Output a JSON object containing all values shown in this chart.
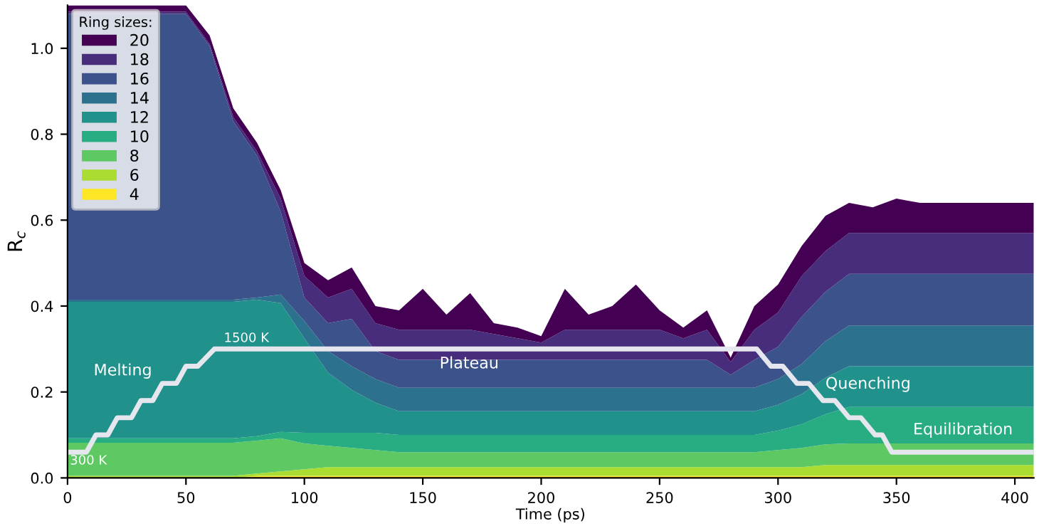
{
  "chart_data": {
    "type": "area",
    "stacked": true,
    "xlabel": "Time (ps)",
    "ylabel": "R$_{c}$",
    "legend_title": "Ring sizes:",
    "legend": "top left",
    "grid": false,
    "x": [
      0,
      10,
      20,
      30,
      40,
      50,
      60,
      70,
      80,
      90,
      100,
      110,
      120,
      130,
      140,
      150,
      160,
      170,
      180,
      190,
      200,
      210,
      220,
      230,
      240,
      250,
      260,
      270,
      280,
      290,
      300,
      310,
      320,
      330,
      340,
      350,
      360,
      370,
      380,
      390,
      400,
      408
    ],
    "xlim": [
      0,
      408
    ],
    "xticks": [
      0,
      50,
      100,
      150,
      200,
      250,
      300,
      350,
      400
    ],
    "ylim": [
      0,
      1.1
    ],
    "yticks": [
      {
        "value": 0.0,
        "label": "0.0"
      },
      0.2,
      0.4,
      0.6,
      0.8,
      {
        "value": 1.0,
        "label": "1.0"
      }
    ],
    "series": [
      {
        "name": "4",
        "color": "#fde725",
        "values": [
          0,
          0,
          0,
          0,
          0,
          0,
          0,
          0,
          0.005,
          0.005,
          0.005,
          0.005,
          0.005,
          0.005,
          0.005,
          0.005,
          0.005,
          0.005,
          0.005,
          0.005,
          0.005,
          0.005,
          0.005,
          0.005,
          0.005,
          0.005,
          0.005,
          0.005,
          0.005,
          0.005,
          0.005,
          0.005,
          0.005,
          0.005,
          0.005,
          0.005,
          0.005,
          0.005,
          0.005,
          0.005,
          0.005,
          0.005
        ]
      },
      {
        "name": "6",
        "color": "#aadc32",
        "values": [
          0.005,
          0.005,
          0.005,
          0.005,
          0.005,
          0.005,
          0.005,
          0.005,
          0.005,
          0.01,
          0.015,
          0.02,
          0.02,
          0.02,
          0.02,
          0.02,
          0.02,
          0.02,
          0.02,
          0.02,
          0.02,
          0.02,
          0.02,
          0.02,
          0.02,
          0.02,
          0.02,
          0.02,
          0.02,
          0.02,
          0.02,
          0.02,
          0.025,
          0.025,
          0.025,
          0.025,
          0.025,
          0.025,
          0.025,
          0.025,
          0.025,
          0.025
        ]
      },
      {
        "name": "8",
        "color": "#5ec962",
        "values": [
          0.077,
          0.077,
          0.077,
          0.077,
          0.077,
          0.077,
          0.077,
          0.077,
          0.077,
          0.077,
          0.06,
          0.05,
          0.045,
          0.04,
          0.035,
          0.035,
          0.035,
          0.035,
          0.035,
          0.035,
          0.035,
          0.035,
          0.035,
          0.035,
          0.035,
          0.035,
          0.035,
          0.035,
          0.035,
          0.035,
          0.04,
          0.045,
          0.048,
          0.05,
          0.05,
          0.05,
          0.05,
          0.05,
          0.05,
          0.05,
          0.05,
          0.05
        ]
      },
      {
        "name": "10",
        "color": "#27ad81",
        "values": [
          0.01,
          0.01,
          0.01,
          0.01,
          0.01,
          0.01,
          0.01,
          0.01,
          0.01,
          0.015,
          0.025,
          0.03,
          0.035,
          0.04,
          0.04,
          0.04,
          0.04,
          0.04,
          0.04,
          0.04,
          0.04,
          0.04,
          0.04,
          0.04,
          0.04,
          0.04,
          0.04,
          0.04,
          0.04,
          0.04,
          0.045,
          0.055,
          0.07,
          0.085,
          0.085,
          0.085,
          0.085,
          0.085,
          0.085,
          0.085,
          0.085,
          0.085
        ]
      },
      {
        "name": "12",
        "color": "#21918c",
        "values": [
          0.318,
          0.318,
          0.318,
          0.318,
          0.318,
          0.318,
          0.318,
          0.318,
          0.318,
          0.3,
          0.22,
          0.14,
          0.1,
          0.07,
          0.055,
          0.055,
          0.055,
          0.055,
          0.055,
          0.055,
          0.055,
          0.055,
          0.055,
          0.055,
          0.055,
          0.055,
          0.055,
          0.055,
          0.055,
          0.055,
          0.06,
          0.07,
          0.085,
          0.095,
          0.095,
          0.095,
          0.095,
          0.095,
          0.095,
          0.095,
          0.095,
          0.095
        ]
      },
      {
        "name": "14",
        "color": "#2c728e",
        "values": [
          0.005,
          0.005,
          0.005,
          0.005,
          0.005,
          0.005,
          0.005,
          0.005,
          0.005,
          0.02,
          0.04,
          0.05,
          0.055,
          0.055,
          0.055,
          0.055,
          0.055,
          0.055,
          0.055,
          0.055,
          0.055,
          0.055,
          0.055,
          0.055,
          0.055,
          0.055,
          0.055,
          0.055,
          0.055,
          0.055,
          0.06,
          0.07,
          0.085,
          0.095,
          0.095,
          0.095,
          0.095,
          0.095,
          0.095,
          0.095,
          0.095,
          0.095
        ]
      },
      {
        "name": "16",
        "color": "#3b528b",
        "values": [
          0.665,
          0.665,
          0.665,
          0.665,
          0.665,
          0.665,
          0.59,
          0.415,
          0.33,
          0.193,
          0.055,
          0.065,
          0.11,
          0.065,
          0.065,
          0.065,
          0.065,
          0.065,
          0.065,
          0.065,
          0.065,
          0.065,
          0.065,
          0.065,
          0.065,
          0.065,
          0.065,
          0.065,
          0.03,
          0.065,
          0.075,
          0.11,
          0.115,
          0.12,
          0.12,
          0.12,
          0.12,
          0.12,
          0.12,
          0.12,
          0.12,
          0.12
        ]
      },
      {
        "name": "18",
        "color": "#472d7b",
        "values": [
          0.005,
          0.005,
          0.005,
          0.005,
          0.005,
          0.005,
          0.005,
          0.01,
          0.01,
          0.03,
          0.05,
          0.06,
          0.07,
          0.065,
          0.07,
          0.07,
          0.07,
          0.07,
          0.06,
          0.05,
          0.04,
          0.07,
          0.07,
          0.07,
          0.07,
          0.07,
          0.05,
          0.07,
          0.03,
          0.07,
          0.08,
          0.095,
          0.095,
          0.095,
          0.095,
          0.095,
          0.095,
          0.095,
          0.095,
          0.095,
          0.095,
          0.095
        ]
      },
      {
        "name": "20",
        "color": "#440154",
        "values": [
          0.015,
          0.015,
          0.015,
          0.015,
          0.015,
          0.015,
          0.02,
          0.02,
          0.02,
          0.02,
          0.03,
          0.04,
          0.05,
          0.04,
          0.045,
          0.095,
          0.035,
          0.085,
          0.025,
          0.025,
          0.015,
          0.095,
          0.035,
          0.055,
          0.105,
          0.045,
          0.025,
          0.045,
          0.01,
          0.055,
          0.065,
          0.07,
          0.082,
          0.07,
          0.06,
          0.08,
          0.07,
          0.07,
          0.07,
          0.07,
          0.07,
          0.07
        ]
      },
      {
        "type": "line",
        "color": "#e6e6ee",
        "x": [
          0,
          8,
          12,
          17,
          21,
          27,
          31,
          36,
          40,
          46,
          50,
          55,
          62,
          291,
          297,
          302,
          308,
          313,
          319,
          324,
          330,
          335,
          341,
          344,
          348,
          408
        ],
        "values": [
          0.06,
          0.06,
          0.1,
          0.1,
          0.14,
          0.14,
          0.18,
          0.18,
          0.22,
          0.22,
          0.26,
          0.26,
          0.3,
          0.3,
          0.26,
          0.26,
          0.22,
          0.22,
          0.18,
          0.18,
          0.14,
          0.14,
          0.1,
          0.1,
          0.06,
          0.06
        ]
      }
    ],
    "annotations": [
      {
        "text": "300 K",
        "x": 1,
        "y": 0.025
      },
      {
        "text": "1500 K",
        "x": 66,
        "y": 0.31
      },
      "Melting",
      "Plateau",
      {
        "text": "Quenching",
        "x": 320,
        "y": 0.2
      },
      "Equilibration"
    ]
  }
}
